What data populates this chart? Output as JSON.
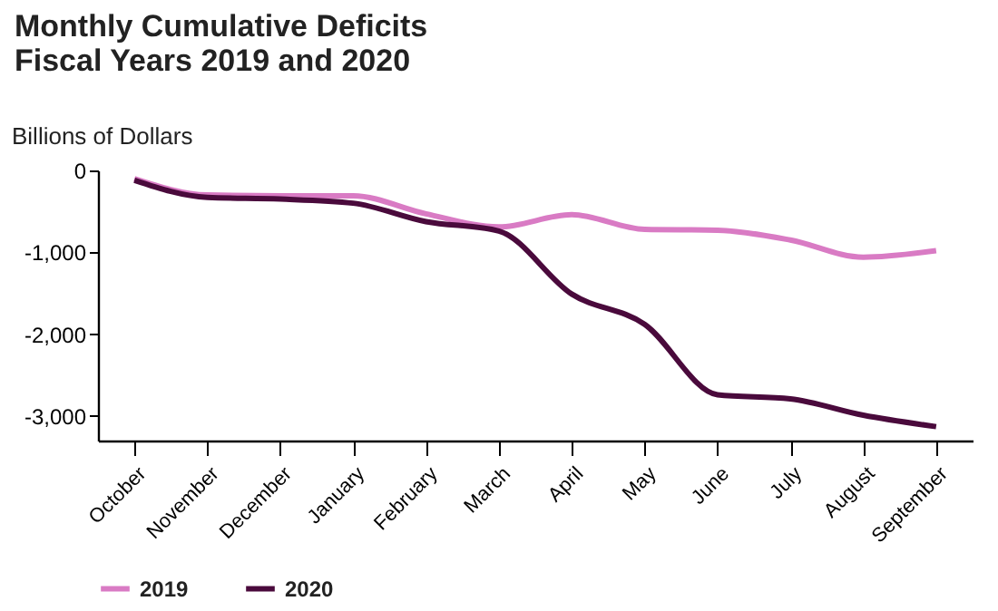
{
  "chart_data": {
    "type": "line",
    "title": "Monthly Cumulative Deficits",
    "subtitle": "Fiscal Years 2019 and 2020",
    "ylabel": "Billions of Dollars",
    "categories": [
      "October",
      "November",
      "December",
      "January",
      "February",
      "March",
      "April",
      "May",
      "June",
      "July",
      "August",
      "September"
    ],
    "series": [
      {
        "name": "2019",
        "color": "#d97bc4",
        "values": [
          -100,
          -300,
          -310,
          -310,
          -530,
          -690,
          -540,
          -720,
          -730,
          -850,
          -1060,
          -980
        ]
      },
      {
        "name": "2020",
        "color": "#4a0a3c",
        "values": [
          -120,
          -330,
          -350,
          -400,
          -625,
          -740,
          -1510,
          -1880,
          -2740,
          -2790,
          -2990,
          -3130
        ]
      }
    ],
    "ylim": [
      -3300,
      0
    ],
    "yticks": [
      {
        "value": 0,
        "label": "0"
      },
      {
        "value": -1000,
        "label": "-1,000"
      },
      {
        "value": -2000,
        "label": "-2,000"
      },
      {
        "value": -3000,
        "label": "-3,000"
      }
    ],
    "grid": false,
    "legend": "bottom",
    "marker": "none",
    "line_style": "solid"
  }
}
